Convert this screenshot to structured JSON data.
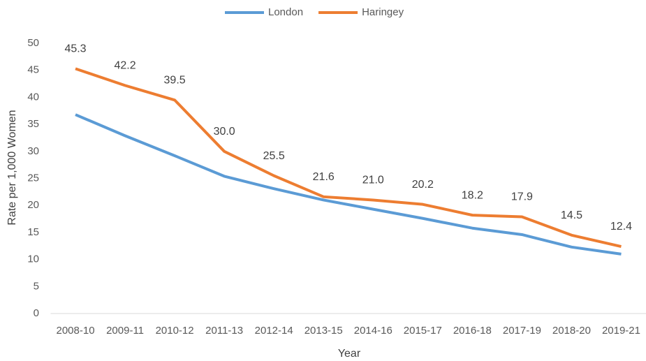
{
  "chart_data": {
    "type": "line",
    "x_label": "Year",
    "y_label": "Rate per 1,000 Women",
    "categories": [
      "2008-10",
      "2009-11",
      "2010-12",
      "2011-13",
      "2012-14",
      "2013-15",
      "2014-16",
      "2015-17",
      "2016-18",
      "2017-19",
      "2018-20",
      "2019-21"
    ],
    "series": [
      {
        "name": "London",
        "color": "#5b9bd5",
        "values": [
          36.8,
          32.9,
          29.2,
          25.4,
          23.1,
          21.0,
          19.3,
          17.6,
          15.8,
          14.6,
          12.3,
          11.0
        ]
      },
      {
        "name": "Haringey",
        "color": "#ed7d31",
        "values": [
          45.3,
          42.2,
          39.5,
          30.0,
          25.5,
          21.6,
          21.0,
          20.2,
          18.2,
          17.9,
          14.5,
          12.4
        ],
        "value_labels": [
          "45.3",
          "42.2",
          "39.5",
          "30.0",
          "25.5",
          "21.6",
          "21.0",
          "20.2",
          "18.2",
          "17.9",
          "14.5",
          "12.4"
        ]
      }
    ],
    "ylim": [
      0,
      50
    ],
    "yticks": [
      0,
      5,
      10,
      15,
      20,
      25,
      30,
      35,
      40,
      45,
      50
    ],
    "grid": false,
    "legend": "top"
  }
}
